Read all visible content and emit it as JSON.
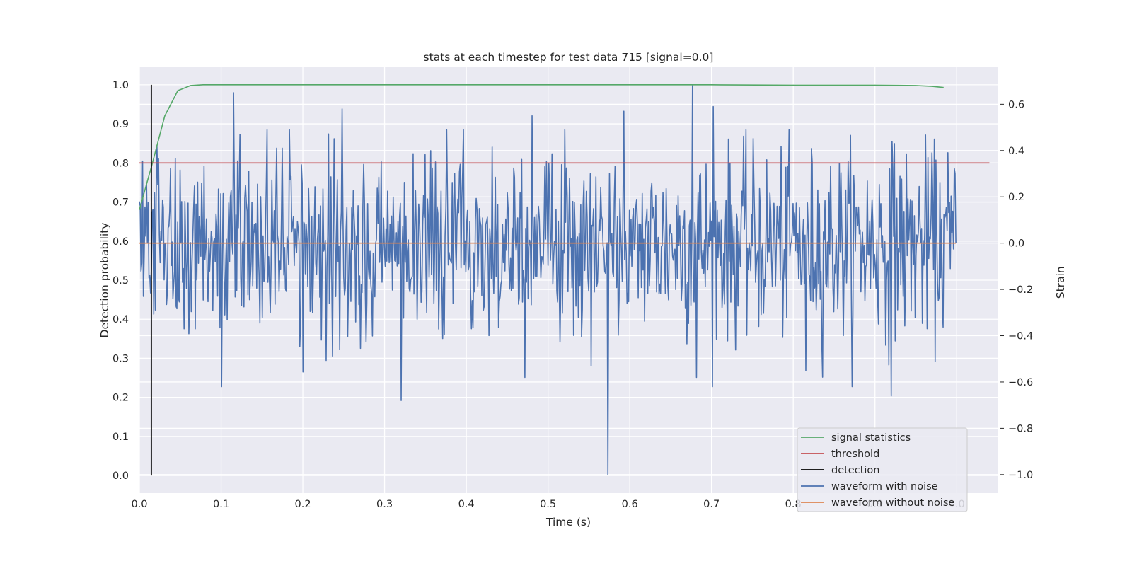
{
  "chart_data": {
    "type": "line",
    "title": "stats at each timestep for test data 715 [signal=0.0]",
    "xlabel": "Time (s)",
    "ylabel_left": "Detection probability",
    "ylabel_right": "Strain",
    "xlim": [
      0.0,
      1.05
    ],
    "ylim_left": [
      -0.045,
      1.045
    ],
    "ylim_right": [
      -1.08,
      0.76
    ],
    "x_ticks": [
      "0.0",
      "0.1",
      "0.2",
      "0.3",
      "0.4",
      "0.5",
      "0.6",
      "0.7",
      "0.8",
      "0.9",
      "1.0"
    ],
    "y_ticks_left": [
      "0.0",
      "0.1",
      "0.2",
      "0.3",
      "0.4",
      "0.5",
      "0.6",
      "0.7",
      "0.8",
      "0.9",
      "1.0"
    ],
    "y_ticks_right": [
      "−1.0",
      "−0.8",
      "−0.6",
      "−0.4",
      "−0.2",
      "0.0",
      "0.2",
      "0.4",
      "0.6"
    ],
    "grid": true,
    "legend_position": "lower-right",
    "colors": {
      "background": "#eaeaf2",
      "grid": "#ffffff",
      "signal_statistics": "#55a868",
      "threshold": "#c44e52",
      "detection": "#000000",
      "waveform_with_noise": "#4c72b0",
      "waveform_without_noise": "#dd8452"
    },
    "series": [
      {
        "name": "signal statistics",
        "axis": "left",
        "x": [
          0.0,
          0.016,
          0.031,
          0.047,
          0.0625,
          0.078,
          0.1,
          0.2,
          0.3,
          0.4,
          0.5,
          0.6,
          0.7,
          0.8,
          0.9,
          0.95,
          0.97,
          0.984
        ],
        "y": [
          0.68,
          0.8,
          0.92,
          0.985,
          0.998,
          1.0,
          1.0,
          1.0,
          1.0,
          1.0,
          1.0,
          1.0,
          1.0,
          0.999,
          0.999,
          0.998,
          0.996,
          0.993
        ]
      },
      {
        "name": "threshold",
        "axis": "left",
        "x": [
          0.0,
          1.04
        ],
        "y": [
          0.8,
          0.8
        ]
      },
      {
        "name": "detection",
        "axis": "left",
        "x": [
          0.0146,
          0.0146
        ],
        "y": [
          0.0,
          1.0
        ]
      },
      {
        "name": "waveform with noise",
        "axis": "right",
        "noise_sigma": 0.2,
        "n_points": 1024,
        "x_range": [
          0.0,
          0.999
        ],
        "min": -1.0,
        "max": 0.68,
        "peaks": [
          {
            "x": 0.0,
            "y": 0.18
          },
          {
            "x": 0.005,
            "y": -0.23
          },
          {
            "x": 0.008,
            "y": 0.03
          },
          {
            "x": 0.012,
            "y": -0.15
          },
          {
            "x": 0.055,
            "y": -0.37
          },
          {
            "x": 0.115,
            "y": 0.65
          },
          {
            "x": 0.245,
            "y": -0.46
          },
          {
            "x": 0.248,
            "y": 0.58
          },
          {
            "x": 0.32,
            "y": -0.68
          },
          {
            "x": 0.472,
            "y": -0.58
          },
          {
            "x": 0.48,
            "y": 0.55
          },
          {
            "x": 0.553,
            "y": -0.53
          },
          {
            "x": 0.573,
            "y": -1.0
          },
          {
            "x": 0.593,
            "y": 0.57
          },
          {
            "x": 0.677,
            "y": 0.68
          },
          {
            "x": 0.682,
            "y": -0.58
          },
          {
            "x": 0.702,
            "y": 0.59
          },
          {
            "x": 0.815,
            "y": -0.55
          },
          {
            "x": 0.92,
            "y": -0.66
          },
          {
            "x": 0.924,
            "y": 0.43
          },
          {
            "x": 0.998,
            "y": 0.3
          }
        ]
      },
      {
        "name": "waveform without noise",
        "axis": "right",
        "x": [
          0.0,
          0.999
        ],
        "y": [
          0.0,
          0.0
        ]
      }
    ]
  }
}
